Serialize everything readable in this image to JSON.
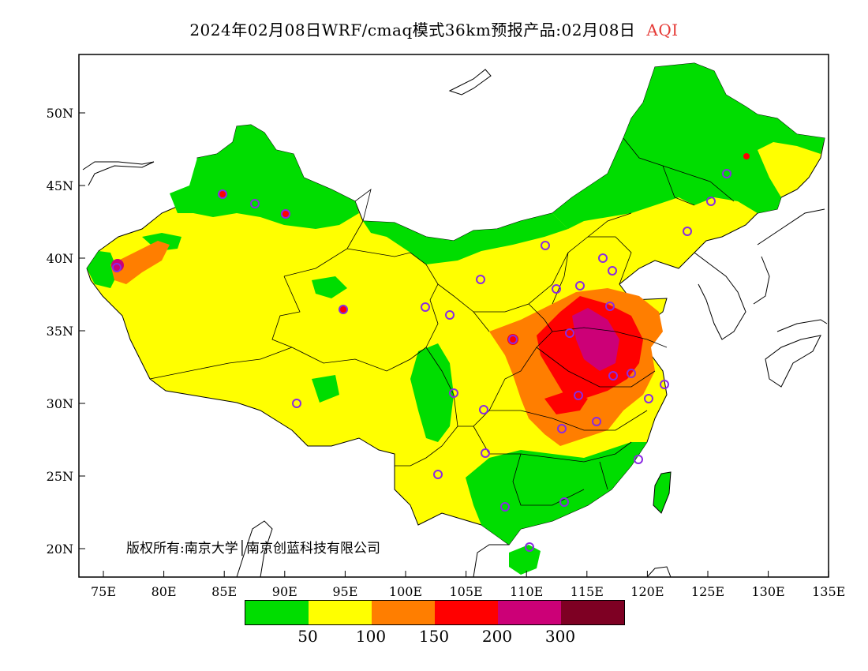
{
  "title": {
    "text": "2024年02月08日WRF/cmaq模式36km预报产品:02月08日",
    "variable": "AQI",
    "variable_color": "#e53935"
  },
  "axes": {
    "lat_ticks": [
      "50N",
      "45N",
      "40N",
      "35N",
      "30N",
      "25N",
      "20N"
    ],
    "lon_ticks": [
      "75E",
      "80E",
      "85E",
      "90E",
      "95E",
      "100E",
      "105E",
      "110E",
      "115E",
      "120E",
      "125E",
      "130E",
      "135E"
    ]
  },
  "copyright": "版权所有:南京大学│南京创蓝科技有限公司",
  "legend": {
    "colors": [
      "#00dd00",
      "#ffff00",
      "#ff7e00",
      "#ff0000",
      "#cc0077",
      "#7e0023"
    ],
    "labels": [
      "50",
      "100",
      "150",
      "200",
      "300"
    ]
  },
  "colors": {
    "good": "#00dd00",
    "moderate": "#ffff00",
    "unhealthy_sensitive": "#ff7e00",
    "unhealthy": "#ff0000",
    "very_unhealthy": "#cc0077",
    "hazardous": "#7e0023",
    "station_marker": "#8a2be2"
  }
}
